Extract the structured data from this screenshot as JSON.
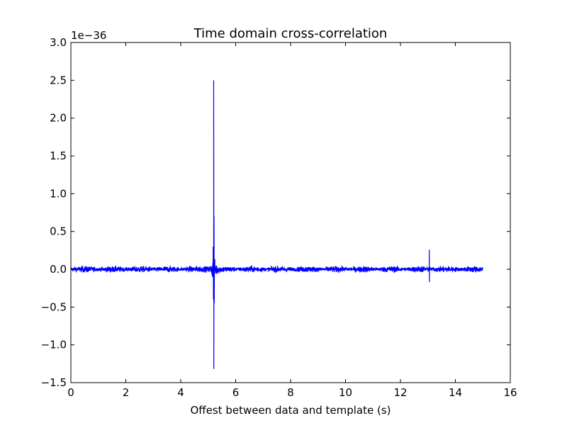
{
  "chart_data": {
    "type": "line",
    "title": "Time domain cross-correlation",
    "xlabel": "Offest between data and template (s)",
    "ylabel": "",
    "y_offset_label": "1e−36",
    "xlim": [
      0,
      16
    ],
    "ylim": [
      -1.5,
      3.0
    ],
    "xticks": [
      0,
      2,
      4,
      6,
      8,
      10,
      12,
      14,
      16
    ],
    "xtick_labels": [
      "0",
      "2",
      "4",
      "6",
      "8",
      "10",
      "12",
      "14",
      "16"
    ],
    "yticks": [
      -1.5,
      -1.0,
      -0.5,
      0.0,
      0.5,
      1.0,
      1.5,
      2.0,
      2.5,
      3.0
    ],
    "ytick_labels": [
      "−1.5",
      "−1.0",
      "−0.5",
      "0.0",
      "0.5",
      "1.0",
      "1.5",
      "2.0",
      "2.5",
      "3.0"
    ],
    "grid": false,
    "color": "#0000ff",
    "series": [
      {
        "x_range": [
          0,
          15
        ],
        "noise_amplitude": 0.05,
        "peaks": [
          {
            "x": 5.2,
            "max": 2.5,
            "min": -1.32
          },
          {
            "x": 5.2,
            "envelope": 0.7
          },
          {
            "x": 13.05,
            "max": 0.26,
            "min": -0.17
          }
        ]
      }
    ]
  }
}
